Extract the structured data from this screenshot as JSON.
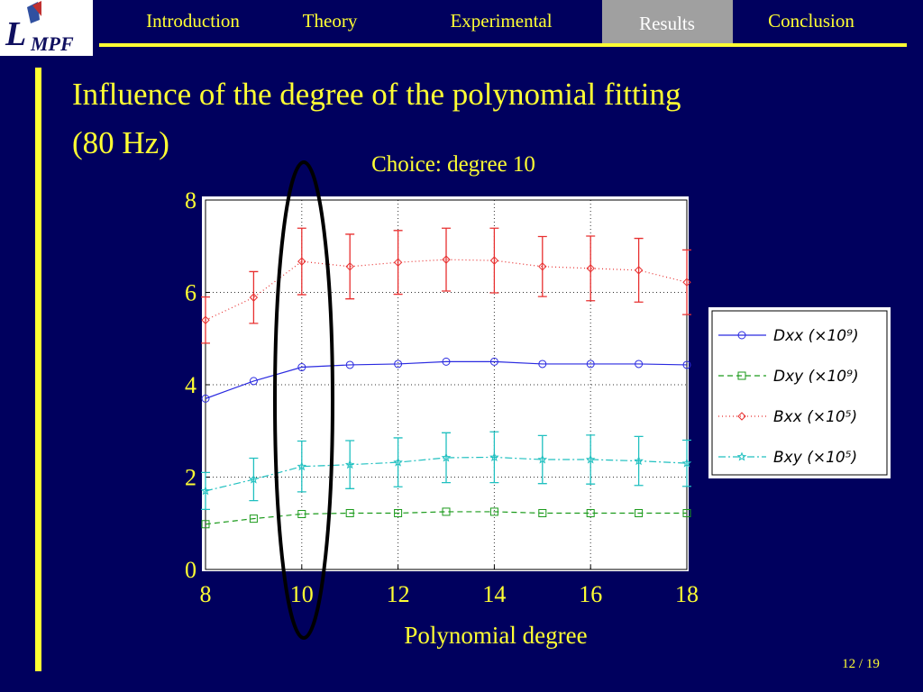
{
  "logo": {
    "letter": "L",
    "rest": "MPF"
  },
  "nav": {
    "items": [
      "Introduction",
      "Theory",
      "Experimental",
      "Results",
      "Conclusion"
    ],
    "active": 3
  },
  "slide_title": [
    "Influence of the degree of the polynomial fitting",
    "(80 Hz)"
  ],
  "page_number": "12 / 19",
  "chart_data": {
    "type": "line",
    "annotation": "Choice: degree 10",
    "xlabel": "Polynomial degree",
    "x": [
      8,
      9,
      10,
      11,
      12,
      13,
      14,
      15,
      16,
      17,
      18
    ],
    "xlim": [
      8,
      18
    ],
    "xticks": [
      8,
      10,
      12,
      14,
      16,
      18
    ],
    "ylim": [
      0,
      8
    ],
    "yticks": [
      0,
      2,
      4,
      6,
      8
    ],
    "grid": true,
    "legend": "outside right",
    "series": [
      {
        "name": "Dxx (×10⁹)",
        "color": "#2a2ae0",
        "dash": "solid",
        "marker": "circle",
        "values": [
          3.7,
          4.08,
          4.38,
          4.43,
          4.45,
          4.5,
          4.5,
          4.45,
          4.45,
          4.45,
          4.43
        ]
      },
      {
        "name": "Dxy (×10⁹)",
        "color": "#1a9a1a",
        "dash": "dashed",
        "marker": "square",
        "values": [
          0.98,
          1.1,
          1.2,
          1.22,
          1.22,
          1.25,
          1.25,
          1.22,
          1.22,
          1.22,
          1.22
        ]
      },
      {
        "name": "Bxx (×10⁵)",
        "color": "#e83030",
        "dash": "dotted",
        "marker": "diamond",
        "values": [
          5.4,
          5.89,
          6.67,
          6.56,
          6.65,
          6.71,
          6.69,
          6.56,
          6.52,
          6.48,
          6.22
        ],
        "errors": [
          0.5,
          0.56,
          0.72,
          0.7,
          0.69,
          0.68,
          0.7,
          0.65,
          0.7,
          0.69,
          0.7
        ]
      },
      {
        "name": "Bxy (×10⁵)",
        "color": "#20c0c0",
        "dash": "dashdot",
        "marker": "star",
        "values": [
          1.7,
          1.95,
          2.23,
          2.27,
          2.32,
          2.42,
          2.43,
          2.38,
          2.38,
          2.35,
          2.3
        ],
        "errors": [
          0.4,
          0.46,
          0.55,
          0.52,
          0.53,
          0.54,
          0.55,
          0.52,
          0.53,
          0.53,
          0.5
        ]
      }
    ]
  }
}
